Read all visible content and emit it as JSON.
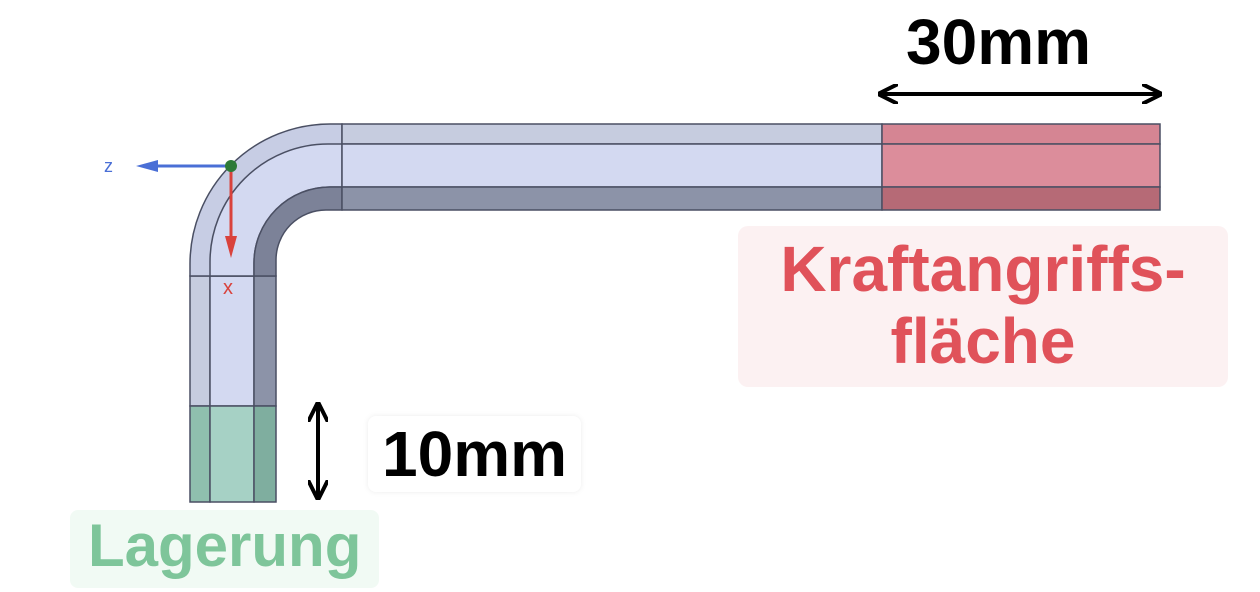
{
  "dimensions": {
    "top": "30mm",
    "side": "10mm"
  },
  "regions": {
    "force": {
      "line1": "Kraftangriffs-",
      "line2": "fläche"
    },
    "support": "Lagerung"
  },
  "axes": {
    "z": "z",
    "x": "x"
  },
  "colors": {
    "force_label": "#e0525a",
    "support_label": "#7ec59a",
    "force_region": "#d98d98",
    "support_region": "#9ccbbd",
    "beam_face": "#cfd6ee",
    "beam_dark": "#8a91a7",
    "z_axis": "#4a6fd6",
    "x_axis": "#d9423c"
  }
}
